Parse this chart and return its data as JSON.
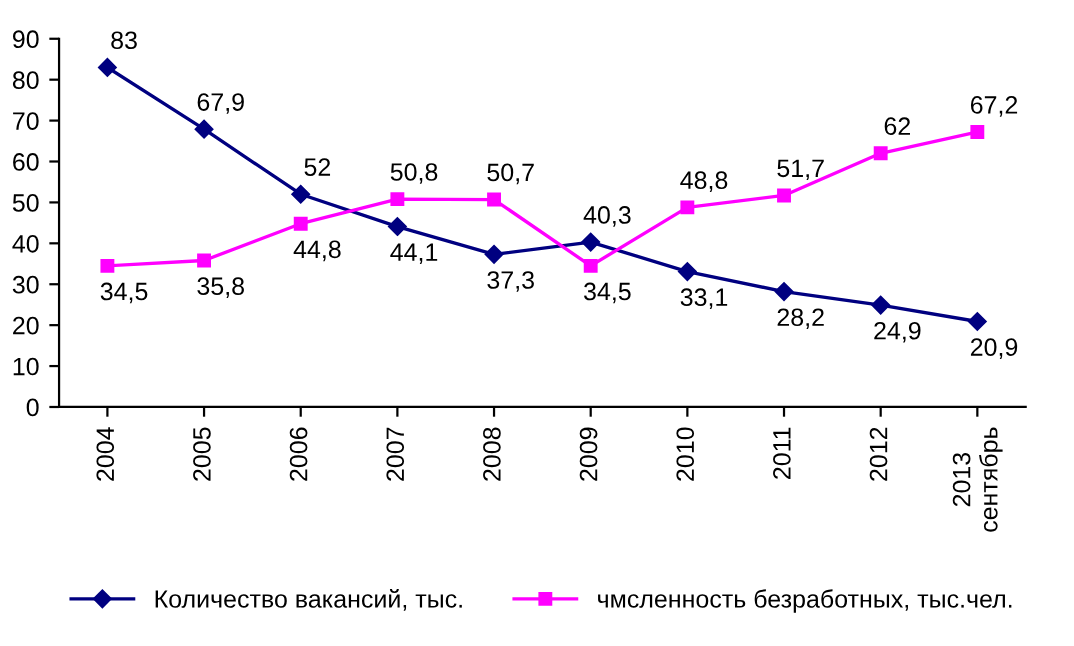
{
  "chart_data": {
    "type": "line",
    "categories": [
      "2004",
      "2005",
      "2006",
      "2007",
      "2008",
      "2009",
      "2010",
      "2011",
      "2012",
      "2013\nсентябрь"
    ],
    "series": [
      {
        "name": "Количество вакансий, тыс.",
        "color": "#000080",
        "marker": "diamond",
        "values": [
          83,
          67.9,
          52,
          44.1,
          37.3,
          40.3,
          33.1,
          28.2,
          24.9,
          20.9
        ],
        "value_labels": [
          "83",
          "67,9",
          "52",
          "44,1",
          "37,3",
          "40,3",
          "33,1",
          "28,2",
          "24,9",
          "20,9"
        ]
      },
      {
        "name": "чмсленность безработных, тыс.чел.",
        "color": "#ff00ff",
        "marker": "square",
        "values": [
          34.5,
          35.8,
          44.8,
          50.8,
          50.7,
          34.5,
          48.8,
          51.7,
          62,
          67.2
        ],
        "value_labels": [
          "34,5",
          "35,8",
          "44,8",
          "50,8",
          "50,7",
          "34,5",
          "48,8",
          "51,7",
          "62",
          "67,2"
        ]
      }
    ],
    "ylim": [
      0,
      90
    ],
    "yticks": [
      0,
      10,
      20,
      30,
      40,
      50,
      60,
      70,
      80,
      90
    ],
    "grid": false,
    "legend": "bottom",
    "line_style": "solid"
  }
}
